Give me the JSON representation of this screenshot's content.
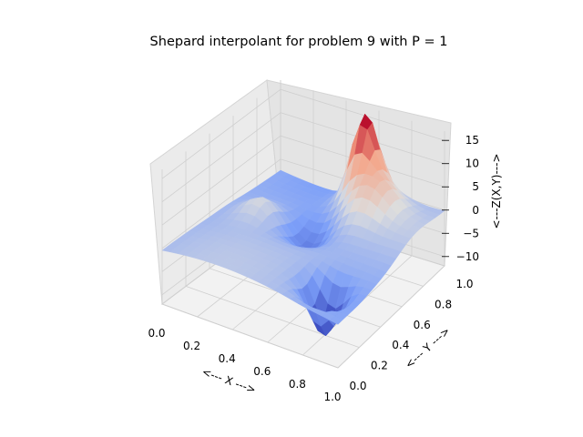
{
  "chart_data": {
    "type": "surface3d",
    "title": "Shepard interpolant for problem 9 with P = 1",
    "xlabel": "<--- X --->",
    "ylabel": "<--- Y --->",
    "zlabel": "<---Z(X,Y)--->",
    "xlim": [
      0,
      1
    ],
    "ylim": [
      0,
      1
    ],
    "zlim": [
      -12,
      17
    ],
    "x_ticks": [
      "0.0",
      "0.2",
      "0.4",
      "0.6",
      "0.8",
      "1.0"
    ],
    "y_ticks": [
      "0.0",
      "0.2",
      "0.4",
      "0.6",
      "0.8",
      "1.0"
    ],
    "z_ticks": [
      "−10",
      "−5",
      "0",
      "5",
      "10",
      "15"
    ],
    "colormap": "coolwarm",
    "grid": true,
    "features": [
      {
        "x": 0.55,
        "y": 0.95,
        "z": 16,
        "label": "sharp peak near high Y"
      },
      {
        "x": 0.8,
        "y": 0.2,
        "z": -11,
        "label": "sharp trough near low Y"
      },
      {
        "x": 0.2,
        "y": 0.55,
        "z": 4,
        "label": "ridge bump"
      }
    ]
  }
}
